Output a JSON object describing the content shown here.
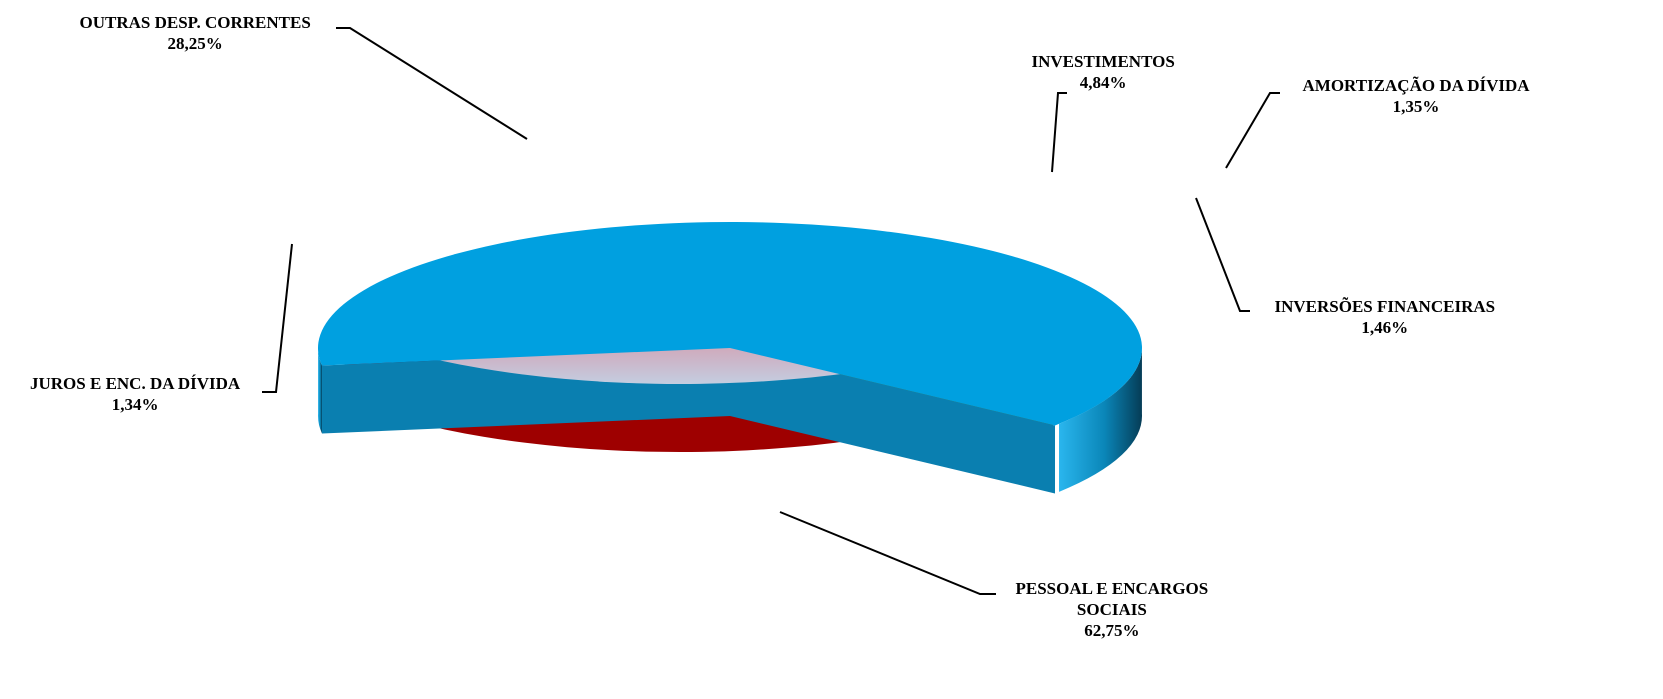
{
  "chart_data": {
    "type": "pie",
    "style": "3d-exploded",
    "title": "",
    "slices": [
      {
        "label": "PESSOAL E ENCARGOS SOCIAIS",
        "label_lines": [
          "PESSOAL E ENCARGOS",
          "SOCIAIS"
        ],
        "value": 62.75,
        "value_label": "62,75%",
        "color": "#00a0e0"
      },
      {
        "label": "JUROS E ENC. DA DÍVIDA",
        "label_lines": [
          "JUROS E ENC. DA DÍVIDA"
        ],
        "value": 1.34,
        "value_label": "1,34%",
        "color": "#f2f200"
      },
      {
        "label": "OUTRAS DESP. CORRENTES",
        "label_lines": [
          "OUTRAS DESP. CORRENTES"
        ],
        "value": 28.25,
        "value_label": "28,25%",
        "color": "#e21a1a"
      },
      {
        "label": "INVESTIMENTOS",
        "label_lines": [
          "INVESTIMENTOS"
        ],
        "value": 4.84,
        "value_label": "4,84%",
        "color": "#7a2a4a"
      },
      {
        "label": "AMORTIZAÇÃO DA DÍVIDA",
        "label_lines": [
          "AMORTIZAÇÃO DA DÍVIDA"
        ],
        "value": 1.35,
        "value_label": "1,35%",
        "color": "#7fbf4f"
      },
      {
        "label": "INVERSÕES FINANCEIRAS",
        "label_lines": [
          "INVERSÕES FINANCEIRAS"
        ],
        "value": 1.46,
        "value_label": "1,46%",
        "color": "#d08a86"
      }
    ]
  }
}
